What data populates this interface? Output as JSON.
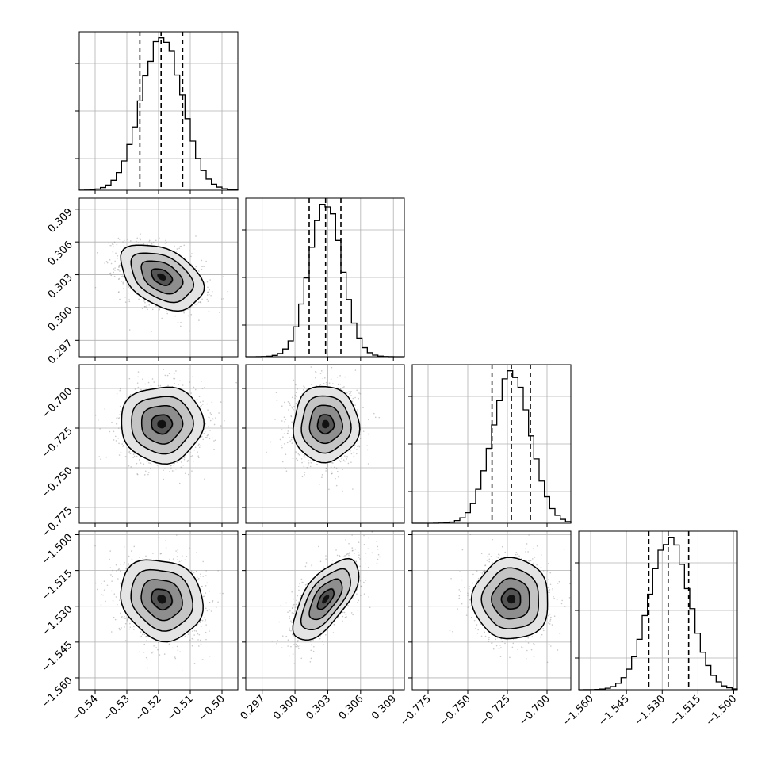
{
  "chart_data": {
    "type": "corner",
    "n_params": 4,
    "params": [
      {
        "range": [
          -0.545,
          -0.495
        ],
        "ticks": [
          -0.54,
          -0.53,
          -0.52,
          -0.51,
          -0.5
        ],
        "tick_labels": [
          "−0.54",
          "−0.53",
          "−0.52",
          "−0.51",
          "−0.50"
        ],
        "mean": -0.519,
        "sigma": 0.0065,
        "quantiles": [
          -0.5259,
          -0.5192,
          -0.5124
        ]
      },
      {
        "range": [
          0.2955,
          0.31
        ],
        "ticks": [
          0.297,
          0.3,
          0.303,
          0.306,
          0.309
        ],
        "tick_labels": [
          "0.297",
          "0.300",
          "0.303",
          "0.306",
          "0.309"
        ],
        "mean": 0.3028,
        "sigma": 0.0015,
        "quantiles": [
          0.3013,
          0.3028,
          0.3042
        ]
      },
      {
        "range": [
          -0.785,
          -0.685
        ],
        "ticks": [
          -0.775,
          -0.75,
          -0.725,
          -0.7
        ],
        "tick_labels": [
          "−0.775",
          "−0.750",
          "−0.725",
          "−0.700"
        ],
        "mean": -0.7225,
        "sigma": 0.012,
        "quantiles": [
          -0.7347,
          -0.7225,
          -0.7105
        ]
      },
      {
        "range": [
          -1.565,
          -1.4985
        ],
        "ticks": [
          -1.56,
          -1.545,
          -1.53,
          -1.515,
          -1.5
        ],
        "tick_labels": [
          "−1.560",
          "−1.545",
          "−1.530",
          "−1.515",
          "−1.500"
        ],
        "mean": -1.527,
        "sigma": 0.0085,
        "quantiles": [
          -1.5356,
          -1.5275,
          -1.5189
        ]
      }
    ],
    "correlations": [
      [
        1.0,
        -0.4,
        0.0,
        -0.15
      ],
      [
        -0.4,
        1.0,
        0.0,
        0.65
      ],
      [
        0.0,
        0.0,
        1.0,
        0.0
      ],
      [
        -0.15,
        0.65,
        0.0,
        1.0
      ]
    ],
    "contour_levels_sigma": [
      0.5,
      1.0,
      1.5,
      2.0
    ],
    "quantile_style": "dashed",
    "grid": true,
    "colors": {
      "ink": "#000000",
      "grid": "#b0b0b0",
      "samples": "#888888"
    }
  }
}
